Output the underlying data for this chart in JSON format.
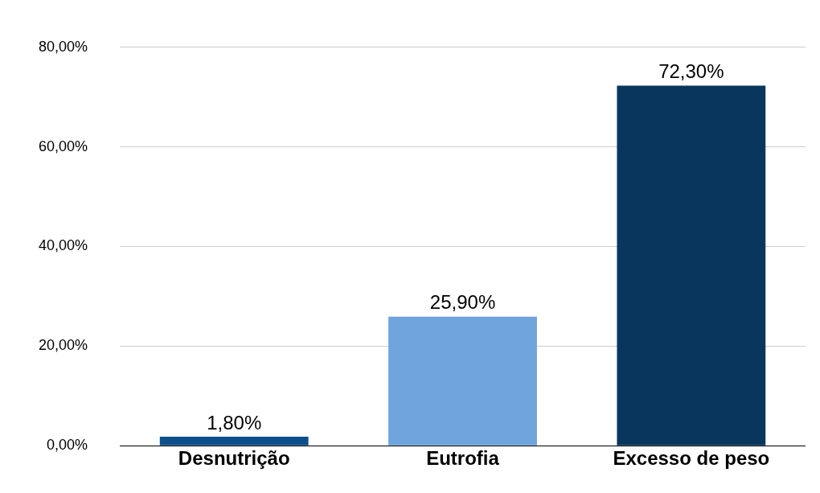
{
  "chart_data": {
    "type": "bar",
    "categories": [
      "Desnutrição",
      "Eutrofia",
      "Excesso de peso"
    ],
    "values": [
      1.8,
      25.9,
      72.3
    ],
    "colors": [
      "#0d4f8b",
      "#6fa4dc",
      "#08365c"
    ],
    "value_labels": [
      "1,80%",
      "25,90%",
      "72,30%"
    ],
    "ylim": [
      0,
      80
    ],
    "yticks": [
      {
        "value": 0,
        "label": "0,00%"
      },
      {
        "value": 20,
        "label": "20,00%"
      },
      {
        "value": 40,
        "label": "40,00%"
      },
      {
        "value": 60,
        "label": "60,00%"
      },
      {
        "value": 80,
        "label": "80,00%"
      }
    ],
    "grid": "y",
    "legend": false
  }
}
